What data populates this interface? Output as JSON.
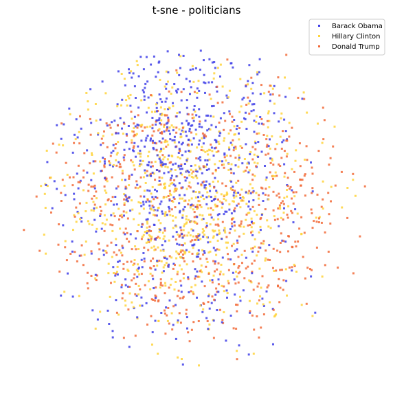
{
  "chart_data": {
    "type": "scatter",
    "title": "t-sne - politicians",
    "xlabel": "",
    "ylabel": "",
    "axes_visible": false,
    "grid": false,
    "legend_position": "top-right",
    "xlim": [
      -60,
      60
    ],
    "ylim": [
      -60,
      60
    ],
    "point_count_per_series": 700,
    "series": [
      {
        "name": "Barack Obama",
        "color": "#4040e8",
        "region_note": "concentrated in upper-center, scattered throughout",
        "points": []
      },
      {
        "name": "Hillary Clinton",
        "color": "#ffd43b",
        "region_note": "concentrated in center",
        "points": []
      },
      {
        "name": "Donald Trump",
        "color": "#f26b3a",
        "region_note": "concentrated at left, right and lower edges",
        "points": []
      }
    ]
  }
}
